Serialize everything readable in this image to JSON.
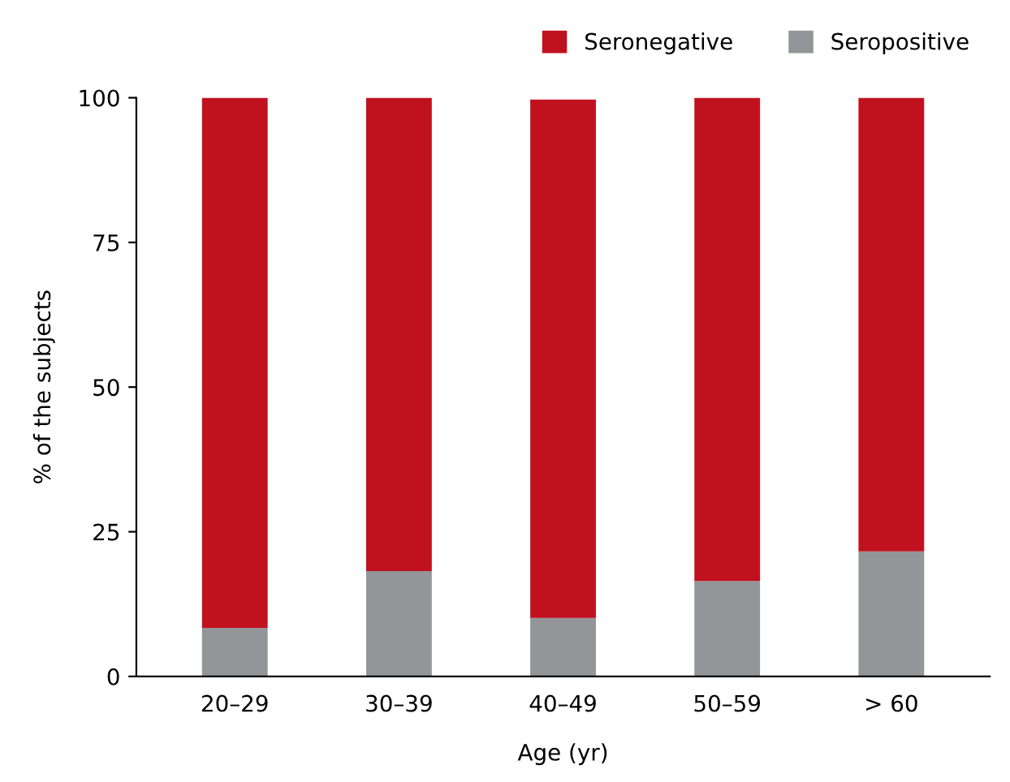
{
  "chart_data": {
    "type": "bar",
    "stacked": true,
    "categories": [
      "20–29",
      "30–39",
      "40–49",
      "50–59",
      "> 60"
    ],
    "series": [
      {
        "name": "Seropositive",
        "color": "#939598",
        "values": [
          8.4,
          18.2,
          10.1,
          16.5,
          21.6
        ]
      },
      {
        "name": "Seronegative",
        "color": "#c0111f",
        "values": [
          91.6,
          81.8,
          89.6,
          83.5,
          78.4
        ]
      }
    ],
    "xlabel": "Age (yr)",
    "ylabel": "% of the subjects",
    "ylim": [
      0,
      100
    ],
    "yticks": [
      0,
      25,
      50,
      75,
      100
    ],
    "grid": false,
    "legend": "top right"
  }
}
